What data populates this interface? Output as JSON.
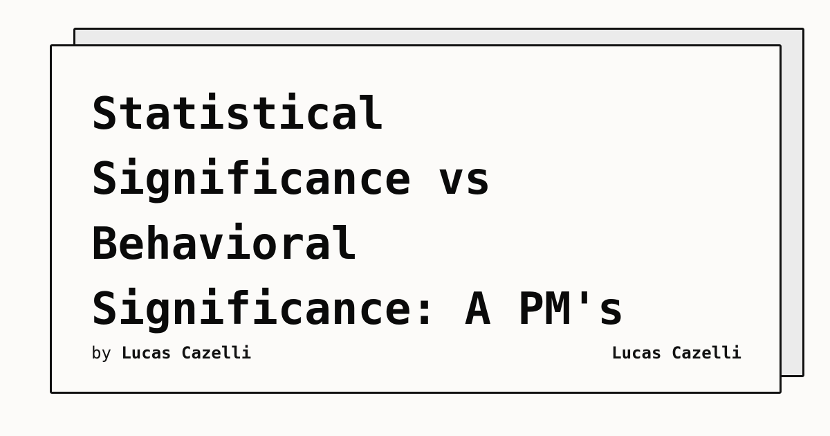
{
  "title_lines": [
    "Statistical",
    "Significance vs",
    "Behavioral",
    "Significance: A PM's"
  ],
  "byline": {
    "prefix": "by",
    "author": "Lucas Cazelli"
  },
  "author_right": "Lucas Cazelli",
  "colors": {
    "background": "#fcfbf9",
    "back_card": "#ebebeb",
    "border": "#111111",
    "text": "#0a0a0a"
  }
}
